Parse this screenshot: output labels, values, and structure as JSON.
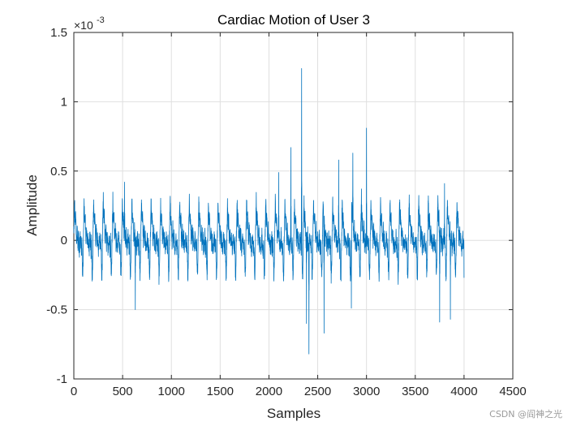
{
  "chart_data": {
    "type": "line",
    "title": "Cardiac Motion of User 3",
    "xlabel": "Samples",
    "ylabel": "Amplitude",
    "xlim": [
      0,
      4500
    ],
    "ylim": [
      -1,
      1.5
    ],
    "xticks": [
      0,
      500,
      1000,
      1500,
      2000,
      2500,
      3000,
      3500,
      4000,
      4500
    ],
    "xtick_labels": [
      "0",
      "500",
      "1000",
      "1500",
      "2000",
      "2500",
      "3000",
      "3500",
      "4000",
      "4500"
    ],
    "yticks": [
      -1,
      -0.5,
      0,
      0.5,
      1,
      1.5
    ],
    "ytick_labels": [
      "-1",
      "-0.5",
      "0",
      "0.5",
      "1",
      "1.5"
    ],
    "exponent_base": "×10",
    "exponent_power": "-3",
    "grid": true,
    "line_color": "#0072bd",
    "series": [
      {
        "name": "Cardiac Motion",
        "sample_count": 4000,
        "beat_period": 98,
        "baseline": 0.0,
        "noise": 0.05,
        "typical_peak": 0.3,
        "typical_trough": -0.25,
        "notable_peaks": [
          {
            "x": 520,
            "y": 0.42
          },
          {
            "x": 2100,
            "y": 0.49
          },
          {
            "x": 2225,
            "y": 0.67
          },
          {
            "x": 2335,
            "y": 1.24
          },
          {
            "x": 2715,
            "y": 0.58
          },
          {
            "x": 2860,
            "y": 0.63
          },
          {
            "x": 3000,
            "y": 0.81
          },
          {
            "x": 3800,
            "y": 0.41
          }
        ],
        "notable_troughs": [
          {
            "x": 630,
            "y": -0.5
          },
          {
            "x": 2385,
            "y": -0.6
          },
          {
            "x": 2410,
            "y": -0.82
          },
          {
            "x": 2565,
            "y": -0.67
          },
          {
            "x": 2845,
            "y": -0.49
          },
          {
            "x": 3750,
            "y": -0.59
          },
          {
            "x": 3860,
            "y": -0.57
          }
        ],
        "end_value": -0.27
      }
    ]
  },
  "watermark": "CSDN @阎神之光"
}
